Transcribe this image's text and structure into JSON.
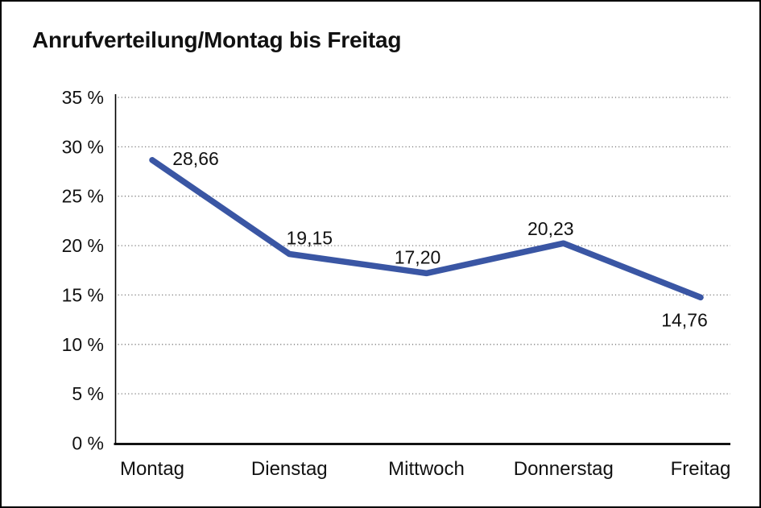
{
  "chart_data": {
    "type": "line",
    "title": "Anrufverteilung/Montag bis Freitag",
    "categories": [
      "Montag",
      "Dienstag",
      "Mittwoch",
      "Donnerstag",
      "Freitag"
    ],
    "series": [
      {
        "name": "Anrufverteilung",
        "values": [
          28.66,
          19.15,
          17.2,
          20.23,
          14.76
        ]
      }
    ],
    "point_labels": [
      "28,66",
      "19,15",
      "17,20",
      "20,23",
      "14,76"
    ],
    "xlabel": "",
    "ylabel": "",
    "ylim": [
      0,
      35
    ],
    "ytick_step": 5,
    "ytick_labels": [
      "0 %",
      "5 %",
      "10 %",
      "15 %",
      "20 %",
      "25 %",
      "30 %",
      "35 %"
    ],
    "grid": "horizontal-dotted",
    "legend": "none",
    "line_color": "#3A56A4",
    "axis_color": "#000000",
    "gridline_color": "#777777",
    "text_color": "#111111",
    "background": "#FFFFFF",
    "border_color": "#000000"
  }
}
